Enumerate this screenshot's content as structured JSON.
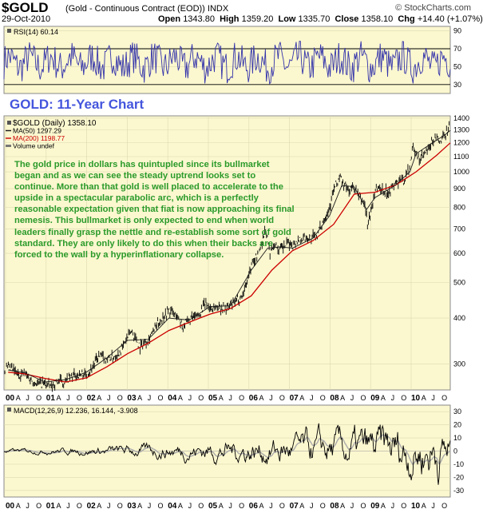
{
  "header": {
    "symbol": "$GOLD",
    "subtitle": "(Gold - Continuous Contract (EOD))  INDX",
    "watermark": "© StockCharts.com",
    "date": "29-Oct-2010",
    "open_label": "Open",
    "open": "1343.80",
    "high_label": "High",
    "high": "1359.20",
    "low_label": "Low",
    "low": "1335.70",
    "close_label": "Close",
    "close": "1358.10",
    "chg_label": "Chg",
    "chg": "+14.40 (+1.07%)"
  },
  "annotation": {
    "heading": "GOLD: 11-Year Chart",
    "commentary": "The gold price in dollars has quintupled since its bullmarket began and as we can see the steady uptrend looks set to continue. More than that gold is well placed to accelerate to the upside in a spectacular parabolic arc, which is a perfectly reasonable expectation given that fiat is now approaching its final nemesis. This bullmarket is only expected to end when world leaders finally grasp the nettle and re-establish some sort of gold standard. They are only likely to do this when their backs are forced to the wall by a hyperinflationary collapse."
  },
  "colors": {
    "panel_bg": "#fbf7cf",
    "price": "#000000",
    "ma50": "#1a1a1a",
    "ma200": "#cc0000",
    "rsi": "#3333aa",
    "macd": "#000000",
    "signal": "#aaaaaa",
    "grid": "#dcd8b0"
  },
  "chart_data": [
    {
      "type": "line",
      "name": "rsi-panel",
      "legend": "RSI(14) 60.14",
      "ylim": [
        20,
        95
      ],
      "y_ticks": [
        30,
        50,
        70,
        90
      ],
      "overbought": 70,
      "oversold": 30,
      "note": "oscillating series",
      "x_range": [
        2000.0,
        2010.83
      ],
      "values_approx_range": [
        25,
        88
      ]
    },
    {
      "type": "line",
      "name": "price-panel",
      "title": "GOLD: 11-Year Chart",
      "scale": "log",
      "legend": [
        {
          "label": "$GOLD (Daily) 1358.10"
        },
        {
          "label": "MA(50) 1297.29"
        },
        {
          "label": "MA(200) 1198.77"
        },
        {
          "label": "Volume undef"
        }
      ],
      "ylim": [
        255,
        1420
      ],
      "y_ticks": [
        300,
        400,
        500,
        600,
        700,
        800,
        900,
        1000,
        1100,
        1200,
        1300,
        1400
      ],
      "x_ticks": [
        "00",
        "A",
        "J",
        "O",
        "01",
        "A",
        "J",
        "O",
        "02",
        "A",
        "J",
        "O",
        "03",
        "A",
        "J",
        "O",
        "04",
        "A",
        "J",
        "O",
        "05",
        "A",
        "J",
        "O",
        "06",
        "A",
        "J",
        "O",
        "07",
        "A",
        "J",
        "O",
        "08",
        "A",
        "J",
        "O",
        "09",
        "A",
        "J",
        "O",
        "10",
        "A",
        "J",
        "O"
      ],
      "series": [
        {
          "name": "$GOLD",
          "x": [
            2000.0,
            2000.1,
            2000.2,
            2000.35,
            2000.5,
            2000.65,
            2000.8,
            2001.0,
            2001.15,
            2001.3,
            2001.45,
            2001.6,
            2001.75,
            2001.9,
            2002.0,
            2002.15,
            2002.3,
            2002.45,
            2002.6,
            2002.75,
            2002.9,
            2003.0,
            2003.1,
            2003.3,
            2003.5,
            2003.7,
            2003.9,
            2004.0,
            2004.2,
            2004.35,
            2004.5,
            2004.7,
            2004.9,
            2005.0,
            2005.2,
            2005.4,
            2005.6,
            2005.8,
            2006.0,
            2006.2,
            2006.35,
            2006.45,
            2006.55,
            2006.7,
            2006.9,
            2007.0,
            2007.2,
            2007.4,
            2007.6,
            2007.75,
            2007.9,
            2008.0,
            2008.15,
            2008.2,
            2008.35,
            2008.5,
            2008.6,
            2008.75,
            2008.83,
            2008.95,
            2009.0,
            2009.15,
            2009.3,
            2009.5,
            2009.7,
            2009.85,
            2009.92,
            2010.0,
            2010.1,
            2010.3,
            2010.45,
            2010.6,
            2010.75,
            2010.83
          ],
          "values": [
            288,
            292,
            290,
            280,
            284,
            272,
            266,
            266,
            260,
            270,
            268,
            275,
            280,
            282,
            280,
            295,
            315,
            310,
            312,
            318,
            338,
            355,
            370,
            335,
            352,
            380,
            410,
            420,
            405,
            380,
            395,
            405,
            440,
            425,
            430,
            425,
            440,
            465,
            555,
            610,
            700,
            600,
            640,
            610,
            640,
            635,
            660,
            660,
            670,
            740,
            800,
            890,
            970,
            940,
            890,
            910,
            860,
            820,
            720,
            820,
            900,
            900,
            880,
            930,
            950,
            1030,
            1200,
            1100,
            1080,
            1150,
            1240,
            1200,
            1300,
            1358
          ]
        },
        {
          "name": "MA(50)",
          "x": [
            2000.1,
            2000.5,
            2001.0,
            2001.5,
            2002.0,
            2002.5,
            2003.0,
            2003.5,
            2004.0,
            2004.5,
            2005.0,
            2005.5,
            2006.0,
            2006.4,
            2006.7,
            2007.0,
            2007.5,
            2007.9,
            2008.2,
            2008.5,
            2008.8,
            2009.0,
            2009.5,
            2009.85,
            2010.0,
            2010.4,
            2010.7,
            2010.83
          ],
          "values": [
            289,
            284,
            268,
            272,
            285,
            312,
            348,
            350,
            400,
            395,
            430,
            432,
            540,
            620,
            625,
            620,
            660,
            760,
            920,
            910,
            790,
            850,
            920,
            1000,
            1120,
            1200,
            1260,
            1297
          ]
        },
        {
          "name": "MA(200)",
          "x": [
            2000.1,
            2000.5,
            2001.0,
            2001.5,
            2002.0,
            2002.5,
            2003.0,
            2003.5,
            2004.0,
            2004.5,
            2005.0,
            2005.5,
            2006.0,
            2006.5,
            2007.0,
            2007.5,
            2008.0,
            2008.5,
            2009.0,
            2009.5,
            2010.0,
            2010.5,
            2010.83
          ],
          "values": [
            285,
            282,
            274,
            268,
            275,
            295,
            320,
            342,
            370,
            390,
            410,
            425,
            460,
            540,
            610,
            650,
            720,
            870,
            880,
            920,
            1000,
            1110,
            1199
          ]
        }
      ]
    },
    {
      "type": "line",
      "name": "macd-panel",
      "legend": "MACD(12,26,9) 12.236, 16.144, -3.908",
      "ylim": [
        -35,
        35
      ],
      "y_ticks": [
        -30,
        -20,
        -10,
        0,
        10,
        20,
        30
      ],
      "x_range": [
        2000.0,
        2010.83
      ],
      "note": "oscillating series around zero"
    }
  ]
}
